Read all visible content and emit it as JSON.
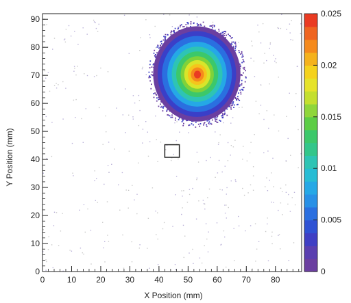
{
  "chart_data": {
    "type": "heatmap",
    "title": "",
    "xlabel": "X Position (mm)",
    "ylabel": "Y Position (mm)",
    "xlim": [
      0,
      89
    ],
    "ylim": [
      0,
      92
    ],
    "x_ticks": [
      "0",
      "10",
      "20",
      "30",
      "40",
      "50",
      "60",
      "70",
      "80"
    ],
    "y_ticks": [
      "0",
      "10",
      "20",
      "30",
      "40",
      "50",
      "60",
      "70",
      "80",
      "90"
    ],
    "colorbar": {
      "range": [
        0,
        0.025
      ],
      "tick_labels": [
        "0",
        "0.005",
        "0.01",
        "0.015",
        "0.02",
        "0.025"
      ],
      "tick_values": [
        0,
        0.005,
        0.01,
        0.015,
        0.02,
        0.025
      ],
      "palette": [
        "#6b3fa0",
        "#3a3fc8",
        "#2a6fe0",
        "#25a8e6",
        "#2ec4b4",
        "#3cc86a",
        "#7fd23a",
        "#d8e52a",
        "#f5c51c",
        "#f58a1c",
        "#ea3b22"
      ]
    },
    "spot": {
      "center_x": 53,
      "center_y": 70.5,
      "radius_x": 15,
      "radius_y": 17,
      "peak_value": 0.025
    },
    "marker_box": {
      "center_x": 44.5,
      "center_y": 43,
      "width": 5,
      "height": 4.5
    },
    "grid": false,
    "colors": {
      "axis": "#222222",
      "background": "#ffffff",
      "marker": "#222222"
    }
  }
}
